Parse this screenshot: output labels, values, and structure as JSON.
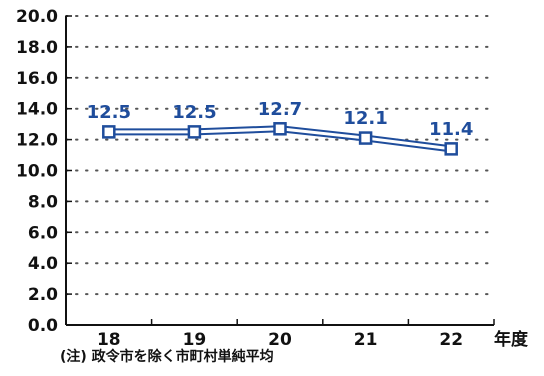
{
  "chart_data": {
    "type": "line",
    "x": [
      "18",
      "19",
      "20",
      "21",
      "22"
    ],
    "series": [
      {
        "values": [
          12.5,
          12.5,
          12.7,
          12.1,
          11.4
        ],
        "labels": [
          "12.5",
          "12.5",
          "12.7",
          "12.1",
          "11.4"
        ]
      }
    ],
    "y_ticks": [
      "0.0",
      "2.0",
      "4.0",
      "6.0",
      "8.0",
      "10.0",
      "12.0",
      "14.0",
      "16.0",
      "18.0",
      "20.0"
    ],
    "ylim": [
      0,
      20
    ],
    "xunit": "年度",
    "grid": "dotted horizontal",
    "line_color": "#1f4d9c",
    "marker": "square"
  },
  "note": "(注) 政令市を除く市町村単純平均"
}
